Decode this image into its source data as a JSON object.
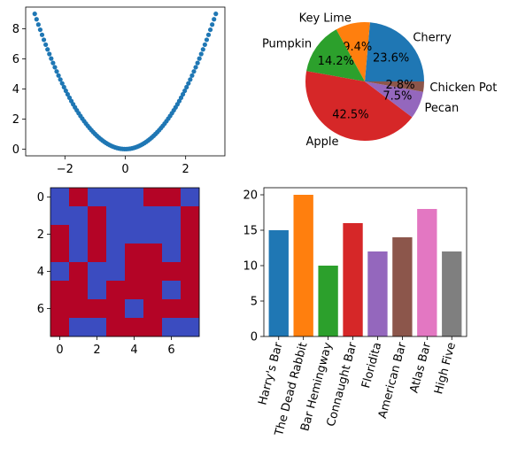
{
  "chart_data": [
    {
      "type": "scatter",
      "title": "",
      "xlabel": "",
      "ylabel": "",
      "x_range": [
        -3,
        3
      ],
      "n_points": 100,
      "function": "y = x^2",
      "xlim": [
        -3.3,
        3.3
      ],
      "ylim": [
        -0.45,
        9.45
      ],
      "xticks": [
        -2,
        0,
        2
      ],
      "yticks": [
        0,
        2,
        4,
        6,
        8
      ],
      "color": "#1f77b4"
    },
    {
      "type": "pie",
      "title": "",
      "labels": [
        "Cherry",
        "Key Lime",
        "Pumpkin",
        "Apple",
        "Pecan",
        "Chicken Pot"
      ],
      "values": [
        23.6,
        9.4,
        14.2,
        42.5,
        7.5,
        2.8
      ],
      "autopct": [
        "23.6%",
        "9.4%",
        "14.2%",
        "42.5%",
        "7.5%",
        "2.8%"
      ],
      "colors": [
        "#1f77b4",
        "#ff7f0e",
        "#2ca02c",
        "#d62728",
        "#9467bd",
        "#8c564b"
      ]
    },
    {
      "type": "heatmap",
      "title": "",
      "xticks": [
        0,
        2,
        4,
        6
      ],
      "yticks": [
        0,
        2,
        4,
        6
      ],
      "cmap": {
        "low": "#3b4cc0",
        "high": "#b40426"
      },
      "grid": [
        [
          0,
          1,
          0,
          0,
          0,
          1,
          1,
          0
        ],
        [
          0,
          0,
          1,
          0,
          0,
          0,
          0,
          1
        ],
        [
          1,
          0,
          1,
          0,
          0,
          0,
          0,
          1
        ],
        [
          1,
          0,
          1,
          0,
          1,
          1,
          0,
          1
        ],
        [
          0,
          1,
          0,
          0,
          1,
          1,
          1,
          1
        ],
        [
          1,
          1,
          0,
          1,
          1,
          1,
          0,
          1
        ],
        [
          1,
          1,
          1,
          1,
          0,
          1,
          1,
          1
        ],
        [
          1,
          0,
          0,
          1,
          1,
          1,
          0,
          0
        ]
      ]
    },
    {
      "type": "bar",
      "title": "",
      "xlabel": "",
      "ylabel": "",
      "categories": [
        "Harry's Bar",
        "The Dead Rabbit",
        "Bar Hemingway",
        "Connaught Bar",
        "Floridita",
        "American Bar",
        "Atlas Bar",
        "High Five"
      ],
      "values": [
        15,
        20,
        10,
        16,
        12,
        14,
        18,
        12
      ],
      "colors": [
        "#1f77b4",
        "#ff7f0e",
        "#2ca02c",
        "#d62728",
        "#9467bd",
        "#8c564b",
        "#e377c2",
        "#7f7f7f"
      ],
      "ylim": [
        0,
        21
      ],
      "yticks": [
        0,
        5,
        10,
        15,
        20
      ]
    }
  ]
}
